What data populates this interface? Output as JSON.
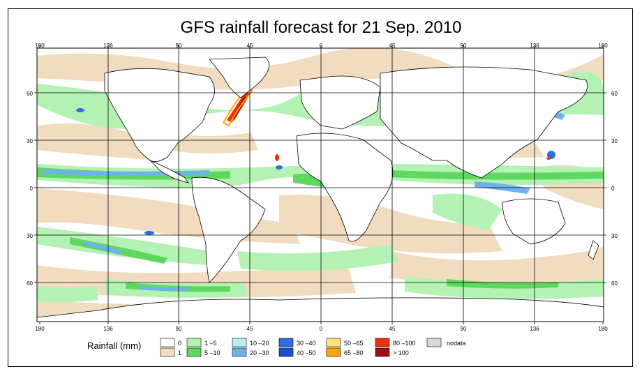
{
  "title": "GFS rainfall forecast for 21 Sep. 2010",
  "lon_labels": [
    "180",
    "136",
    "90",
    "45",
    "0",
    "45",
    "90",
    "136",
    "180"
  ],
  "lat_labels": [
    "60",
    "30",
    "0",
    "30",
    "60"
  ],
  "legend": {
    "title": "Rainfall (mm)",
    "items": [
      {
        "label": "0",
        "color": "#ffffff"
      },
      {
        "label": "1",
        "color": "#f2dcbf"
      },
      {
        "label": "1 –5",
        "color": "#b4f2b4"
      },
      {
        "label": "5 –10",
        "color": "#5fd85f"
      },
      {
        "label": "10 –20",
        "color": "#b9eef5"
      },
      {
        "label": "20 –30",
        "color": "#6fb2ef"
      },
      {
        "label": "30 –40",
        "color": "#2f6fe0"
      },
      {
        "label": "40 –50",
        "color": "#1f4fd0"
      },
      {
        "label": "50 –65",
        "color": "#ffe27a"
      },
      {
        "label": "65 –80",
        "color": "#ffa500"
      },
      {
        "label": "80 –100",
        "color": "#f03010"
      },
      {
        "label": "> 100",
        "color": "#a01010"
      },
      {
        "label": "nodata",
        "color": "#d8d8d8"
      }
    ]
  }
}
